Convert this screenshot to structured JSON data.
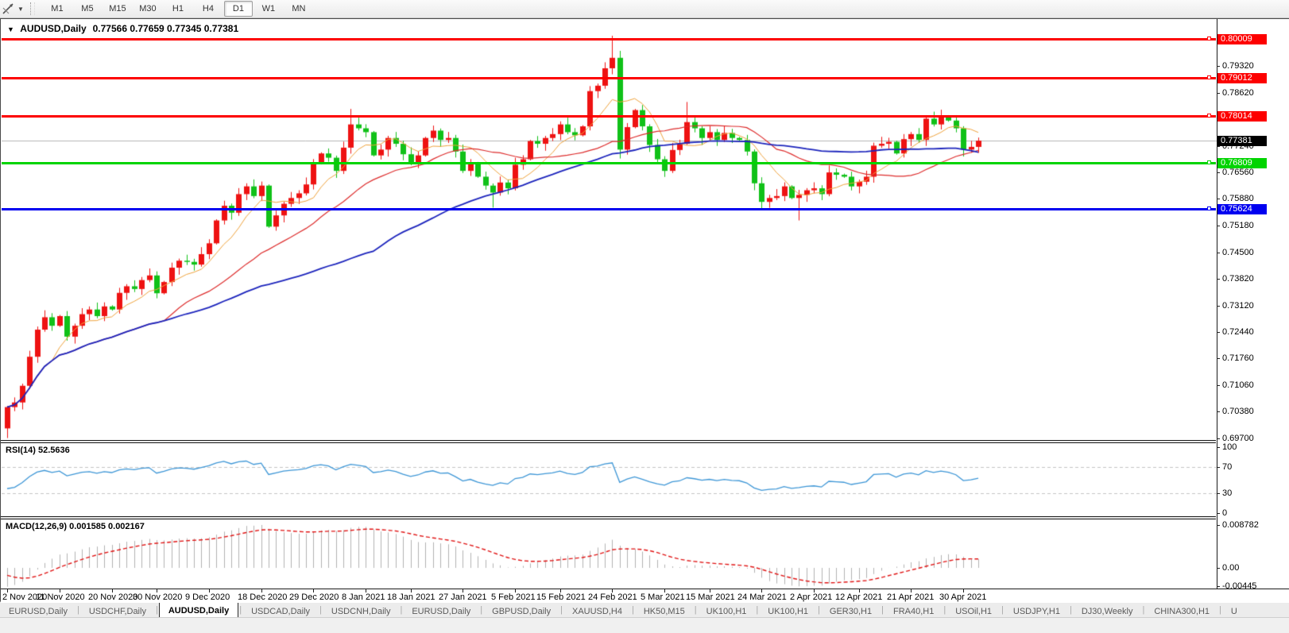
{
  "toolbar": {
    "timeframes": [
      "M1",
      "M5",
      "M15",
      "M30",
      "H1",
      "H4",
      "D1",
      "W1",
      "MN"
    ],
    "active_timeframe": "D1",
    "caret": "▼"
  },
  "window": {
    "title_caret": "▼",
    "title_symbol": "AUDUSD,Daily",
    "title_ohlc": "0.77566 0.77659 0.77345 0.77381"
  },
  "price_axis": {
    "ticks": [
      "0.79320",
      "0.78620",
      "0.77940",
      "0.77240",
      "0.76560",
      "0.75880",
      "0.75180",
      "0.74500",
      "0.73820",
      "0.73120",
      "0.72440",
      "0.71760",
      "0.71060",
      "0.70380",
      "0.69700"
    ]
  },
  "rsi_panel": {
    "label": "RSI(14) 52.5636",
    "scale": [
      100,
      70,
      30,
      0
    ],
    "levels": [
      70,
      30
    ],
    "range": [
      0,
      100
    ],
    "line_color": "#3d96d6",
    "level_color": "#c4c4c4"
  },
  "macd_panel": {
    "label": "MACD(12,26,9) 0.001585 0.002167",
    "scale_top": "0.008782",
    "scale_zero": "0.00",
    "scale_bottom": "-0.00445",
    "histogram_color": "#b2b2b2",
    "signal_color": "#e01515"
  },
  "date_axis": {
    "labels": [
      {
        "text": "2 Nov 2020",
        "i": 0
      },
      {
        "text": "11 Nov 2020",
        "i": 7
      },
      {
        "text": "20 Nov 2020",
        "i": 14
      },
      {
        "text": "30 Nov 2020",
        "i": 20
      },
      {
        "text": "9 Dec 2020",
        "i": 27
      },
      {
        "text": "18 Dec 2020",
        "i": 34
      },
      {
        "text": "29 Dec 2020",
        "i": 41
      },
      {
        "text": "8 Jan 2021",
        "i": 48
      },
      {
        "text": "18 Jan 2021",
        "i": 54
      },
      {
        "text": "27 Jan 2021",
        "i": 61
      },
      {
        "text": "5 Feb 2021",
        "i": 68
      },
      {
        "text": "15 Feb 2021",
        "i": 74
      },
      {
        "text": "24 Feb 2021",
        "i": 81
      },
      {
        "text": "5 Mar 2021",
        "i": 88
      },
      {
        "text": "15 Mar 2021",
        "i": 94
      },
      {
        "text": "24 Mar 2021",
        "i": 101
      },
      {
        "text": "2 Apr 2021",
        "i": 108
      },
      {
        "text": "12 Apr 2021",
        "i": 114
      },
      {
        "text": "21 Apr 2021",
        "i": 121
      },
      {
        "text": "30 Apr 2021",
        "i": 128
      }
    ]
  },
  "tabs": {
    "items": [
      "EURUSD,Daily",
      "USDCHF,Daily",
      "AUDUSD,Daily",
      "USDCAD,Daily",
      "USDCNH,Daily",
      "EURUSD,Daily",
      "GBPUSD,Daily",
      "XAUUSD,H4",
      "HK50,M15",
      "UK100,H1",
      "UK100,H1",
      "GER30,H1",
      "FRA40,H1",
      "USOil,H1",
      "USDJPY,H1",
      "DJ30,Weekly",
      "CHINA300,H1",
      "U"
    ],
    "active_index": 2,
    "scroll_left": "◄",
    "scroll_right": "►"
  },
  "chart_data": {
    "type": "candlestick",
    "symbol": "AUDUSD",
    "timeframe": "Daily",
    "ohlc_display": {
      "open": "0.77566",
      "high": "0.77659",
      "low": "0.77345",
      "close": "0.77381"
    },
    "price_range": [
      0.6965,
      0.8048
    ],
    "grid": false,
    "bid_price": 0.77381,
    "bid_label": "0.77381",
    "bull_color": "#ee1212",
    "bear_color": "#10c118",
    "first_open": 0.6995,
    "closes": [
      0.705,
      0.7062,
      0.7105,
      0.718,
      0.725,
      0.7282,
      0.726,
      0.7285,
      0.7232,
      0.726,
      0.729,
      0.7302,
      0.7285,
      0.731,
      0.7302,
      0.7345,
      0.7362,
      0.7355,
      0.7378,
      0.739,
      0.7344,
      0.7373,
      0.741,
      0.7428,
      0.7425,
      0.7418,
      0.7445,
      0.7473,
      0.7532,
      0.757,
      0.7552,
      0.76,
      0.762,
      0.7595,
      0.7622,
      0.7516,
      0.7545,
      0.7575,
      0.759,
      0.7602,
      0.7625,
      0.768,
      0.7705,
      0.7694,
      0.766,
      0.772,
      0.778,
      0.777,
      0.776,
      0.77,
      0.7715,
      0.7745,
      0.773,
      0.7703,
      0.768,
      0.77,
      0.7745,
      0.7764,
      0.774,
      0.7745,
      0.771,
      0.766,
      0.768,
      0.7645,
      0.7622,
      0.7604,
      0.763,
      0.7615,
      0.7676,
      0.769,
      0.7737,
      0.773,
      0.7745,
      0.7755,
      0.778,
      0.776,
      0.7752,
      0.7775,
      0.7866,
      0.788,
      0.7925,
      0.7952,
      0.7715,
      0.7773,
      0.7817,
      0.7775,
      0.7727,
      0.769,
      0.766,
      0.7714,
      0.773,
      0.7786,
      0.777,
      0.7745,
      0.776,
      0.774,
      0.7758,
      0.7745,
      0.774,
      0.771,
      0.7628,
      0.758,
      0.759,
      0.7595,
      0.762,
      0.759,
      0.7598,
      0.761,
      0.7615,
      0.76,
      0.7656,
      0.765,
      0.7645,
      0.762,
      0.7632,
      0.7645,
      0.7725,
      0.773,
      0.7735,
      0.7705,
      0.7742,
      0.7755,
      0.774,
      0.7795,
      0.778,
      0.78,
      0.779,
      0.777,
      0.7715,
      0.7722,
      0.7738
    ],
    "wick_overrides": {
      "0": {
        "low": 0.697
      },
      "46": {
        "high": 0.782
      },
      "65": {
        "low": 0.7565
      },
      "81": {
        "high": 0.8009
      },
      "82": {
        "low": 0.7692
      },
      "91": {
        "high": 0.7838
      },
      "101": {
        "low": 0.7562
      },
      "106": {
        "low": 0.7532
      },
      "125": {
        "high": 0.7818
      }
    },
    "moving_averages": [
      {
        "period": 7,
        "color": "#eea23c",
        "width": 1
      },
      {
        "period": 22,
        "color": "#dd2c2c",
        "width": 1.2
      },
      {
        "period": 50,
        "color": "#1c24bc",
        "width": 1.8
      }
    ],
    "hlines": [
      {
        "price": 0.80009,
        "label": "0.80009",
        "color": "#fd0000",
        "thickness": 3
      },
      {
        "price": 0.79012,
        "label": "0.79012",
        "color": "#fd0000",
        "thickness": 3
      },
      {
        "price": 0.78014,
        "label": "0.78014",
        "color": "#fd0000",
        "thickness": 3
      },
      {
        "price": 0.76809,
        "label": "0.76809",
        "color": "#00d400",
        "thickness": 3
      },
      {
        "price": 0.75624,
        "label": "0.75624",
        "color": "#0000f0",
        "thickness": 3
      }
    ],
    "bid_line_color": "#b4b4b4",
    "rsi": {
      "period": 14,
      "current": 52.5636
    },
    "macd": {
      "fast": 12,
      "slow": 26,
      "signal": 9,
      "main": 0.001585,
      "signal_value": 0.002167
    }
  }
}
